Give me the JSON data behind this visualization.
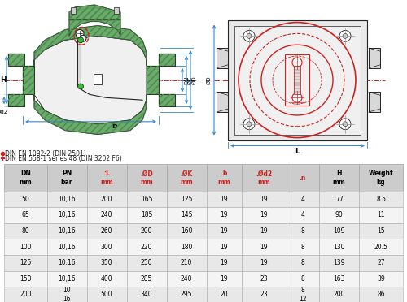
{
  "table_headers": [
    "DN\nmm",
    "PN\nbar",
    ":L\nmm",
    ".ØD\nmm",
    ".ØK\nmm",
    ".b\nmm",
    ".Ød2\nmm",
    ".n",
    "H\nmm",
    "Weight\nkg"
  ],
  "table_data": [
    [
      "50",
      "10,16",
      "200",
      "165",
      "125",
      "19",
      "19",
      "4",
      "77",
      "8.5"
    ],
    [
      "65",
      "10,16",
      "240",
      "185",
      "145",
      "19",
      "19",
      "4",
      "90",
      "11"
    ],
    [
      "80",
      "10,16",
      "260",
      "200",
      "160",
      "19",
      "19",
      "8",
      "109",
      "15"
    ],
    [
      "100",
      "10,16",
      "300",
      "220",
      "180",
      "19",
      "19",
      "8",
      "130",
      "20.5"
    ],
    [
      "125",
      "10,16",
      "350",
      "250",
      "210",
      "19",
      "19",
      "8",
      "139",
      "27"
    ],
    [
      "150",
      "10,16",
      "400",
      "285",
      "240",
      "19",
      "23",
      "8",
      "163",
      "39"
    ],
    [
      "200",
      "10\n16",
      "500",
      "340",
      "295",
      "20",
      "23",
      "8\n12",
      "200",
      "86"
    ]
  ],
  "legend1": ".DIN EN 1092-2 (DIN 2501)",
  "legend2": ":DIN EN 558-1 series 48 (DIN 3202 F6)",
  "bg_color": "#ffffff",
  "table_header_bg": "#cccccc",
  "table_row_odd_bg": "#e8e8e8",
  "table_row_even_bg": "#f4f4f4",
  "table_border_color": "#aaaaaa",
  "green_body": "#6aaa6a",
  "green_hatch": "#5a9a5a",
  "dark": "#222222",
  "red": "#cc2222",
  "blue": "#3388cc",
  "gray": "#999999",
  "light_gray": "#cccccc",
  "white": "#ffffff"
}
